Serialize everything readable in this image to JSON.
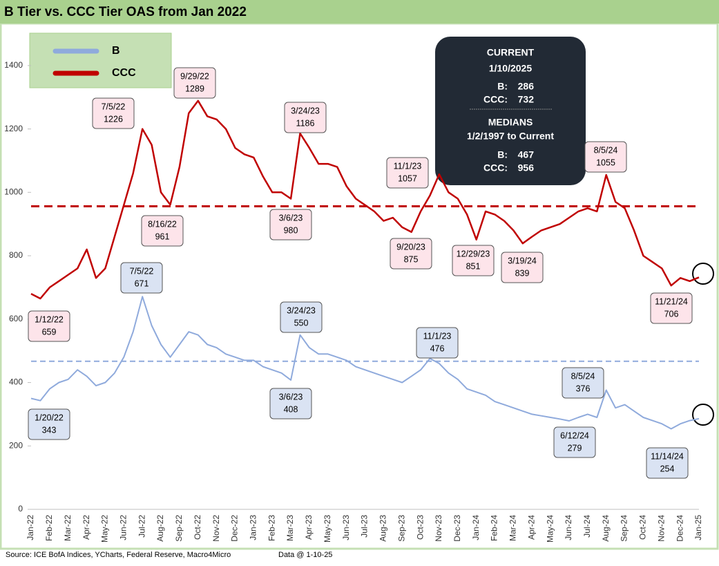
{
  "chart_data": {
    "type": "line",
    "title": "B Tier vs. CCC Tier OAS from Jan 2022",
    "categories": [
      "Jan-22",
      null,
      "Feb-22",
      null,
      "Mar-22",
      null,
      "Apr-22",
      null,
      "May-22",
      null,
      "Jun-22",
      null,
      "Jul-22",
      null,
      "Aug-22",
      null,
      "Sep-22",
      null,
      "Oct-22",
      null,
      "Nov-22",
      null,
      "Dec-22",
      null,
      "Jan-23",
      null,
      "Feb-23",
      null,
      "Mar-23",
      null,
      "Apr-23",
      null,
      "May-23",
      null,
      "Jun-23",
      null,
      "Jul-23",
      null,
      "Aug-23",
      null,
      "Sep-23",
      null,
      "Oct-23",
      null,
      "Nov-23",
      null,
      "Dec-23",
      null,
      "Jan-24",
      null,
      "Feb-24",
      null,
      "Mar-24",
      null,
      "Apr-24",
      null,
      "May-24",
      null,
      "Jun-24",
      null,
      "Jul-24",
      null,
      "Aug-24",
      null,
      "Sep-24",
      null,
      "Oct-24",
      null,
      "Nov-24",
      null,
      "Dec-24",
      null,
      "Jan-25"
    ],
    "series": [
      {
        "name": "B",
        "color": "#8faadc",
        "values": [
          350,
          343,
          380,
          400,
          410,
          440,
          420,
          390,
          400,
          430,
          480,
          560,
          671,
          580,
          520,
          480,
          520,
          560,
          550,
          520,
          510,
          490,
          480,
          470,
          470,
          450,
          440,
          430,
          408,
          550,
          510,
          490,
          490,
          480,
          470,
          450,
          440,
          430,
          420,
          410,
          400,
          420,
          440,
          476,
          460,
          430,
          410,
          380,
          370,
          360,
          340,
          330,
          320,
          310,
          300,
          295,
          290,
          285,
          279,
          290,
          300,
          290,
          376,
          320,
          330,
          310,
          290,
          280,
          270,
          254,
          270,
          280,
          286
        ],
        "annotations": [
          {
            "date": "7/5/22",
            "value": 671
          },
          {
            "date": "1/20/22",
            "value": 343
          },
          {
            "date": "3/24/23",
            "value": 550
          },
          {
            "date": "3/6/23",
            "value": 408
          },
          {
            "date": "11/1/23",
            "value": 476
          },
          {
            "date": "8/5/24",
            "value": 376
          },
          {
            "date": "6/12/24",
            "value": 279
          },
          {
            "date": "11/14/24",
            "value": 254
          }
        ]
      },
      {
        "name": "CCC",
        "color": "#c00000",
        "values": [
          680,
          665,
          700,
          720,
          740,
          760,
          820,
          730,
          760,
          860,
          960,
          1060,
          1200,
          1150,
          1000,
          961,
          1080,
          1250,
          1289,
          1240,
          1230,
          1200,
          1140,
          1120,
          1110,
          1050,
          1000,
          1000,
          980,
          1186,
          1140,
          1090,
          1090,
          1080,
          1020,
          980,
          960,
          940,
          910,
          920,
          890,
          875,
          940,
          990,
          1057,
          1000,
          980,
          930,
          851,
          940,
          930,
          910,
          880,
          839,
          860,
          880,
          890,
          900,
          920,
          940,
          950,
          940,
          1055,
          970,
          950,
          880,
          800,
          780,
          760,
          706,
          730,
          720,
          732
        ],
        "annotations": [
          {
            "date": "1/12/22",
            "value": 659
          },
          {
            "date": "7/5/22",
            "value": 1226
          },
          {
            "date": "9/29/22",
            "value": 1289
          },
          {
            "date": "8/16/22",
            "value": 961
          },
          {
            "date": "3/24/23",
            "value": 1186
          },
          {
            "date": "3/6/23",
            "value": 980
          },
          {
            "date": "11/1/23",
            "value": 1057
          },
          {
            "date": "9/20/23",
            "value": 875
          },
          {
            "date": "12/29/23",
            "value": 851
          },
          {
            "date": "3/19/24",
            "value": 839
          },
          {
            "date": "8/5/24",
            "value": 1055
          },
          {
            "date": "11/21/24",
            "value": 706
          }
        ]
      }
    ],
    "ylim": [
      0,
      1500
    ],
    "yticks": [
      0,
      200,
      400,
      600,
      800,
      1000,
      1200,
      1400
    ],
    "grid": false,
    "legend": "top-left",
    "info": {
      "current_title": "CURRENT",
      "current_date": "1/10/2025",
      "current": [
        {
          "label": "B:",
          "value": 286
        },
        {
          "label": "CCC:",
          "value": 732
        }
      ],
      "medians_title": "MEDIANS",
      "medians_period": "1/2/1997 to Current",
      "medians": [
        {
          "label": "B:",
          "value": 467
        },
        {
          "label": "CCC:",
          "value": 956
        }
      ]
    },
    "source": "Source: ICE BofA Indices, YCharts, Federal Reserve, Macro4Micro",
    "data_date": "Data @ 1-10-25"
  }
}
